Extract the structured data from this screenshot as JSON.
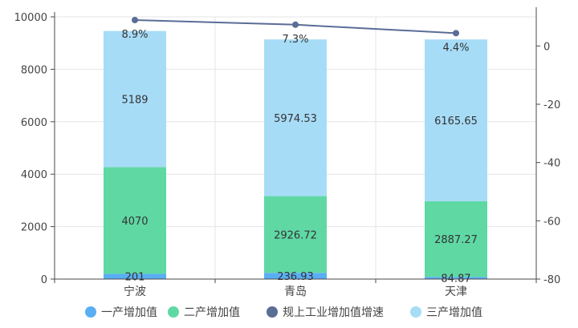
{
  "chart_data": {
    "type": "bar",
    "stacked": true,
    "categories": [
      "宁波",
      "青岛",
      "天津"
    ],
    "series": [
      {
        "name": "一产增加值",
        "kind": "bar",
        "axis": "left",
        "color": "#5aaef3",
        "values": [
          201,
          236.93,
          84.87
        ],
        "labels": [
          "201",
          "236.93",
          "84.87"
        ]
      },
      {
        "name": "二产增加值",
        "kind": "bar",
        "axis": "left",
        "color": "#5fd8a4",
        "values": [
          4070,
          2926.72,
          2887.27
        ],
        "labels": [
          "4070",
          "2926.72",
          "2887.27"
        ]
      },
      {
        "name": "规上工业增加值增速",
        "kind": "line",
        "axis": "right",
        "color": "#5a6d96",
        "values": [
          8.9,
          7.3,
          4.4
        ],
        "labels": [
          "8.9%",
          "7.3%",
          "4.4%"
        ]
      },
      {
        "name": "三产增加值",
        "kind": "bar",
        "axis": "left",
        "color": "#a7dcf7",
        "values": [
          5189,
          5974.53,
          6165.65
        ],
        "labels": [
          "5189",
          "5974.53",
          "6165.65"
        ]
      }
    ],
    "y_left": {
      "min": 0,
      "max": 10000,
      "ticks": [
        0,
        2000,
        4000,
        6000,
        8000,
        10000
      ]
    },
    "y_right": {
      "min": -80,
      "max": 10,
      "ticks": [
        0,
        -20,
        -40,
        -60,
        -80
      ]
    },
    "grid": true,
    "legend_position": "bottom"
  }
}
